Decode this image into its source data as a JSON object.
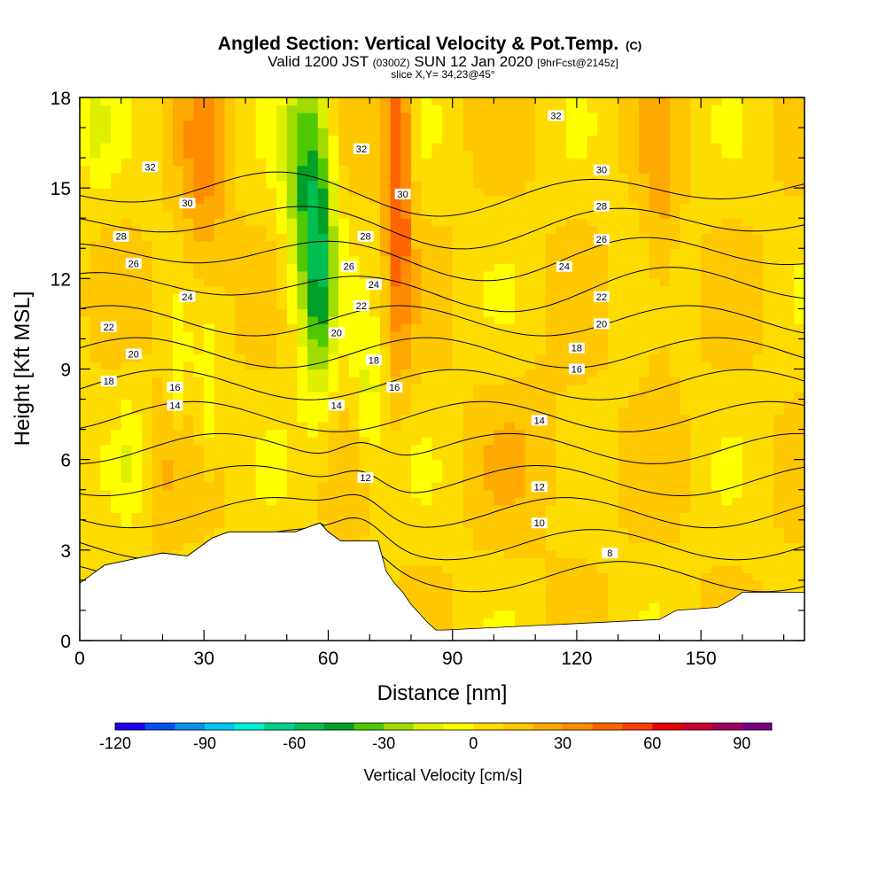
{
  "title": {
    "main": "Angled Section: Vertical Velocity & Pot.Temp.",
    "main_suffix": "(C)",
    "valid_prefix": "Valid 1200 JST",
    "valid_zulu": "(0300Z)",
    "valid_date": "SUN 12 Jan 2020",
    "valid_fcst": "[9hrFcst@2145z]",
    "slice": "slice X,Y= 34,23@45°"
  },
  "colors": {
    "ramp": [
      "#1e00f0",
      "#0050f0",
      "#0090f0",
      "#00c8f0",
      "#00f0d2",
      "#00d28c",
      "#00be50",
      "#00a028",
      "#50c800",
      "#a0dc00",
      "#dcf000",
      "#ffff00",
      "#ffdc00",
      "#ffc800",
      "#ffaa00",
      "#ff8c00",
      "#ff6400",
      "#ff3c00",
      "#e60000",
      "#c80032",
      "#a0005a",
      "#780082"
    ],
    "terrain": "#ffffff",
    "contour": "#000000"
  },
  "chart_data": {
    "type": "heatmap",
    "xlabel": "Distance [nm]",
    "ylabel": "Height [Kft MSL]",
    "xlim": [
      0,
      175
    ],
    "ylim": [
      0,
      18
    ],
    "x_ticks": [
      "0",
      "30",
      "60",
      "90",
      "120",
      "150"
    ],
    "y_ticks": [
      "0",
      "3",
      "6",
      "9",
      "12",
      "15",
      "18"
    ],
    "colorbar": {
      "label": "Vertical Velocity [cm/s]",
      "ticks": [
        "-120",
        "-90",
        "-60",
        "-30",
        "0",
        "30",
        "60",
        "90"
      ],
      "range": [
        -120,
        100
      ],
      "step": 10
    },
    "terrain_profile": {
      "x": [
        0,
        3,
        6,
        13,
        20,
        26,
        30,
        32,
        34,
        36,
        52,
        58,
        60,
        63,
        72,
        74,
        76,
        78,
        80,
        82,
        84,
        86,
        88,
        140,
        144,
        154,
        158,
        160,
        175
      ],
      "z": [
        1.9,
        2.2,
        2.5,
        2.7,
        2.9,
        2.8,
        3.2,
        3.4,
        3.5,
        3.6,
        3.6,
        3.9,
        3.6,
        3.3,
        3.3,
        2.3,
        1.9,
        1.6,
        1.2,
        0.9,
        0.6,
        0.35,
        0.35,
        0.7,
        1.0,
        1.1,
        1.4,
        1.6,
        1.6
      ]
    },
    "theta_contours": [
      8,
      10,
      12,
      14,
      16,
      18,
      20,
      22,
      24,
      26,
      28,
      30,
      32
    ],
    "contour_labels": [
      {
        "x": 17,
        "z": 15.7,
        "v": "32"
      },
      {
        "x": 26,
        "z": 14.5,
        "v": "30"
      },
      {
        "x": 10,
        "z": 13.4,
        "v": "28"
      },
      {
        "x": 13,
        "z": 12.5,
        "v": "26"
      },
      {
        "x": 26,
        "z": 11.4,
        "v": "24"
      },
      {
        "x": 7,
        "z": 10.4,
        "v": "22"
      },
      {
        "x": 13,
        "z": 9.5,
        "v": "20"
      },
      {
        "x": 7,
        "z": 8.6,
        "v": "18"
      },
      {
        "x": 23,
        "z": 8.4,
        "v": "16"
      },
      {
        "x": 23,
        "z": 7.8,
        "v": "14"
      },
      {
        "x": 68,
        "z": 16.3,
        "v": "32"
      },
      {
        "x": 78,
        "z": 14.8,
        "v": "30"
      },
      {
        "x": 69,
        "z": 13.4,
        "v": "28"
      },
      {
        "x": 65,
        "z": 12.4,
        "v": "26"
      },
      {
        "x": 71,
        "z": 11.8,
        "v": "24"
      },
      {
        "x": 68,
        "z": 11.1,
        "v": "22"
      },
      {
        "x": 62,
        "z": 10.2,
        "v": "20"
      },
      {
        "x": 71,
        "z": 9.3,
        "v": "18"
      },
      {
        "x": 76,
        "z": 8.4,
        "v": "16"
      },
      {
        "x": 62,
        "z": 7.8,
        "v": "14"
      },
      {
        "x": 69,
        "z": 5.4,
        "v": "12"
      },
      {
        "x": 115,
        "z": 17.4,
        "v": "32"
      },
      {
        "x": 126,
        "z": 15.6,
        "v": "30"
      },
      {
        "x": 126,
        "z": 14.4,
        "v": "28"
      },
      {
        "x": 126,
        "z": 13.3,
        "v": "26"
      },
      {
        "x": 117,
        "z": 12.4,
        "v": "24"
      },
      {
        "x": 126,
        "z": 11.4,
        "v": "22"
      },
      {
        "x": 126,
        "z": 10.5,
        "v": "20"
      },
      {
        "x": 120,
        "z": 9.7,
        "v": "18"
      },
      {
        "x": 120,
        "z": 9.0,
        "v": "16"
      },
      {
        "x": 111,
        "z": 7.3,
        "v": "14"
      },
      {
        "x": 111,
        "z": 5.1,
        "v": "12"
      },
      {
        "x": 111,
        "z": 3.9,
        "v": "10"
      },
      {
        "x": 128,
        "z": 2.9,
        "v": "8"
      }
    ]
  }
}
